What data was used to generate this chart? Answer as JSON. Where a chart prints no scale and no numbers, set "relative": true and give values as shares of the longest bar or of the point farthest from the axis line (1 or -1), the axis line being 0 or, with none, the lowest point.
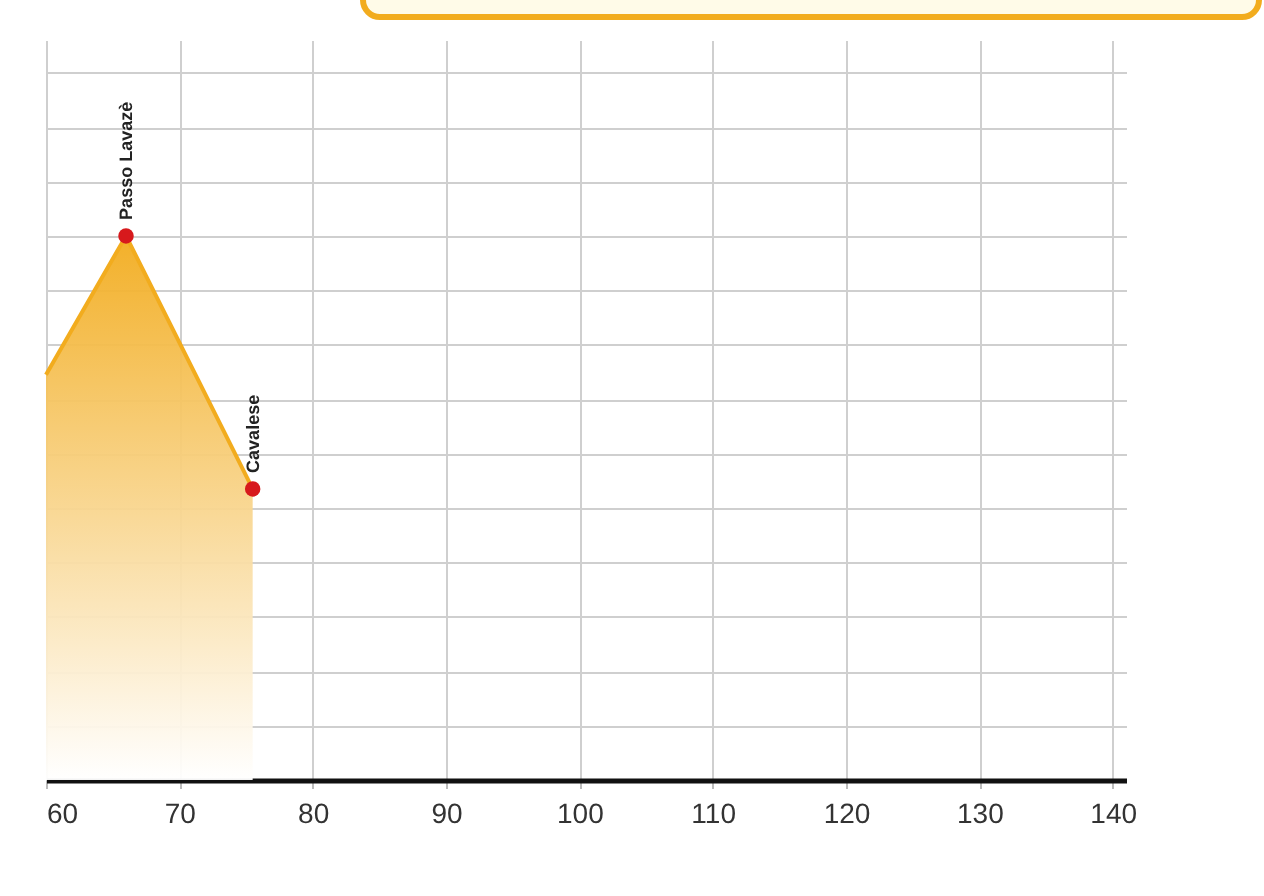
{
  "chart_data": {
    "type": "area",
    "relative": true,
    "x": [
      60,
      66,
      75.5
    ],
    "series": [
      {
        "color": "#f2ac1e",
        "values": [
          0.745,
          1,
          0.535
        ]
      }
    ],
    "xlim": [
      60,
      141
    ],
    "xticks": [
      60,
      70,
      80,
      90,
      100,
      110,
      120,
      130,
      140
    ],
    "grid": true,
    "annotations": [
      {
        "text": "Passo Lavazè",
        "x": 66,
        "y": 1
      },
      {
        "text": "Cavalese",
        "x": 75.5,
        "y": 0.535
      }
    ]
  }
}
